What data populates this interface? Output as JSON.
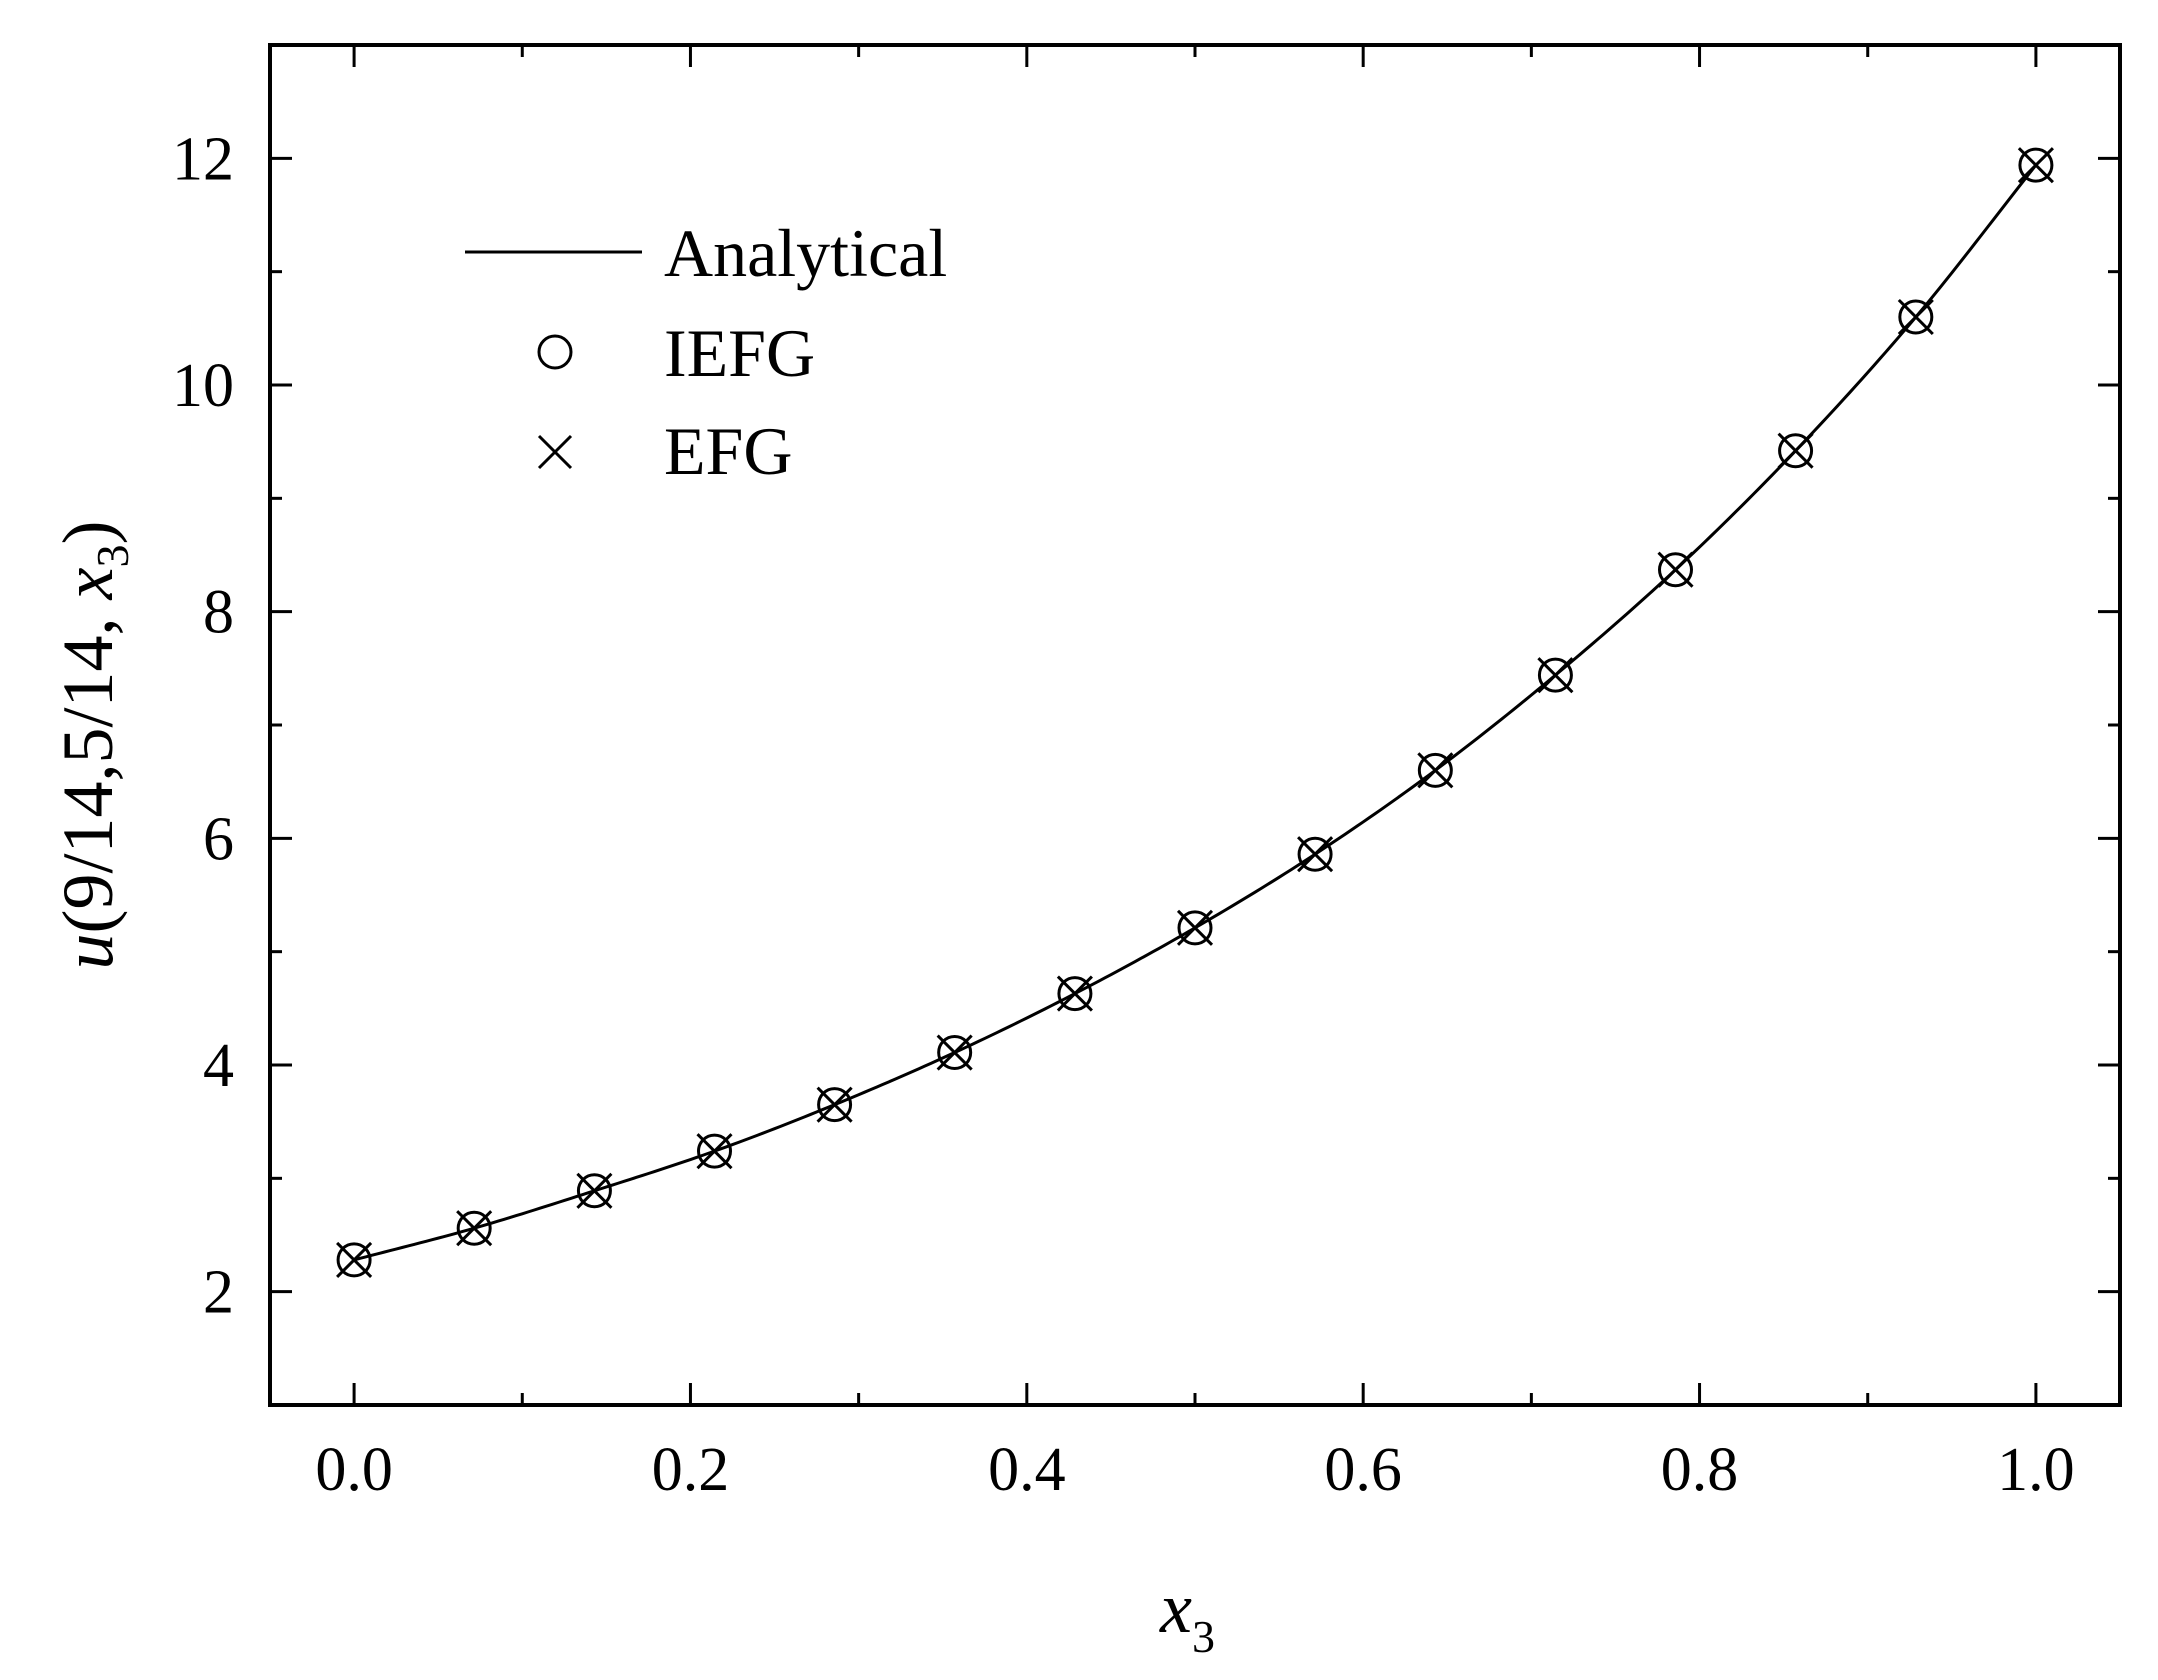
{
  "chart_data": {
    "type": "line",
    "title": "",
    "xlabel": "x",
    "xlabel_subscript": "3",
    "ylabel_prefix": "u",
    "ylabel_main": "(9/14,5/14, ",
    "ylabel_var": "x",
    "ylabel_subscript": "3",
    "ylabel_suffix": ")",
    "xlim": [
      -0.05,
      1.05
    ],
    "ylim": [
      1.0,
      13.0
    ],
    "x_ticks": [
      0.0,
      0.2,
      0.4,
      0.6,
      0.8,
      1.0
    ],
    "x_tick_labels": [
      "0.0",
      "0.2",
      "0.4",
      "0.6",
      "0.8",
      "1.0"
    ],
    "y_ticks": [
      2,
      4,
      6,
      8,
      10,
      12
    ],
    "y_tick_labels": [
      "2",
      "4",
      "6",
      "8",
      "10",
      "12"
    ],
    "grid": false,
    "legend_position": "top-left",
    "series": [
      {
        "name": "Analytical",
        "style": "line",
        "x": [
          0.0,
          0.0714,
          0.1429,
          0.2143,
          0.2857,
          0.3571,
          0.4286,
          0.5,
          0.5714,
          0.6429,
          0.7143,
          0.7857,
          0.8571,
          0.9286,
          1.0
        ],
        "y": [
          2.28,
          2.56,
          2.89,
          3.24,
          3.65,
          4.11,
          4.63,
          5.21,
          5.86,
          6.6,
          7.44,
          8.37,
          9.42,
          10.6,
          11.94
        ]
      },
      {
        "name": "IEFG",
        "style": "circle",
        "x": [
          0.0,
          0.0714,
          0.1429,
          0.2143,
          0.2857,
          0.3571,
          0.4286,
          0.5,
          0.5714,
          0.6429,
          0.7143,
          0.7857,
          0.8571,
          0.9286,
          1.0
        ],
        "y": [
          2.28,
          2.56,
          2.89,
          3.24,
          3.65,
          4.11,
          4.63,
          5.21,
          5.86,
          6.6,
          7.44,
          8.37,
          9.42,
          10.6,
          11.94
        ]
      },
      {
        "name": "EFG",
        "style": "cross",
        "x": [
          0.0,
          0.0714,
          0.1429,
          0.2143,
          0.2857,
          0.3571,
          0.4286,
          0.5,
          0.5714,
          0.6429,
          0.7143,
          0.7857,
          0.8571,
          0.9286,
          1.0
        ],
        "y": [
          2.28,
          2.56,
          2.89,
          3.24,
          3.65,
          4.11,
          4.63,
          5.21,
          5.86,
          6.6,
          7.44,
          8.37,
          9.42,
          10.6,
          11.94
        ]
      }
    ],
    "colors": {
      "line": "#000000",
      "background": "#ffffff"
    }
  }
}
